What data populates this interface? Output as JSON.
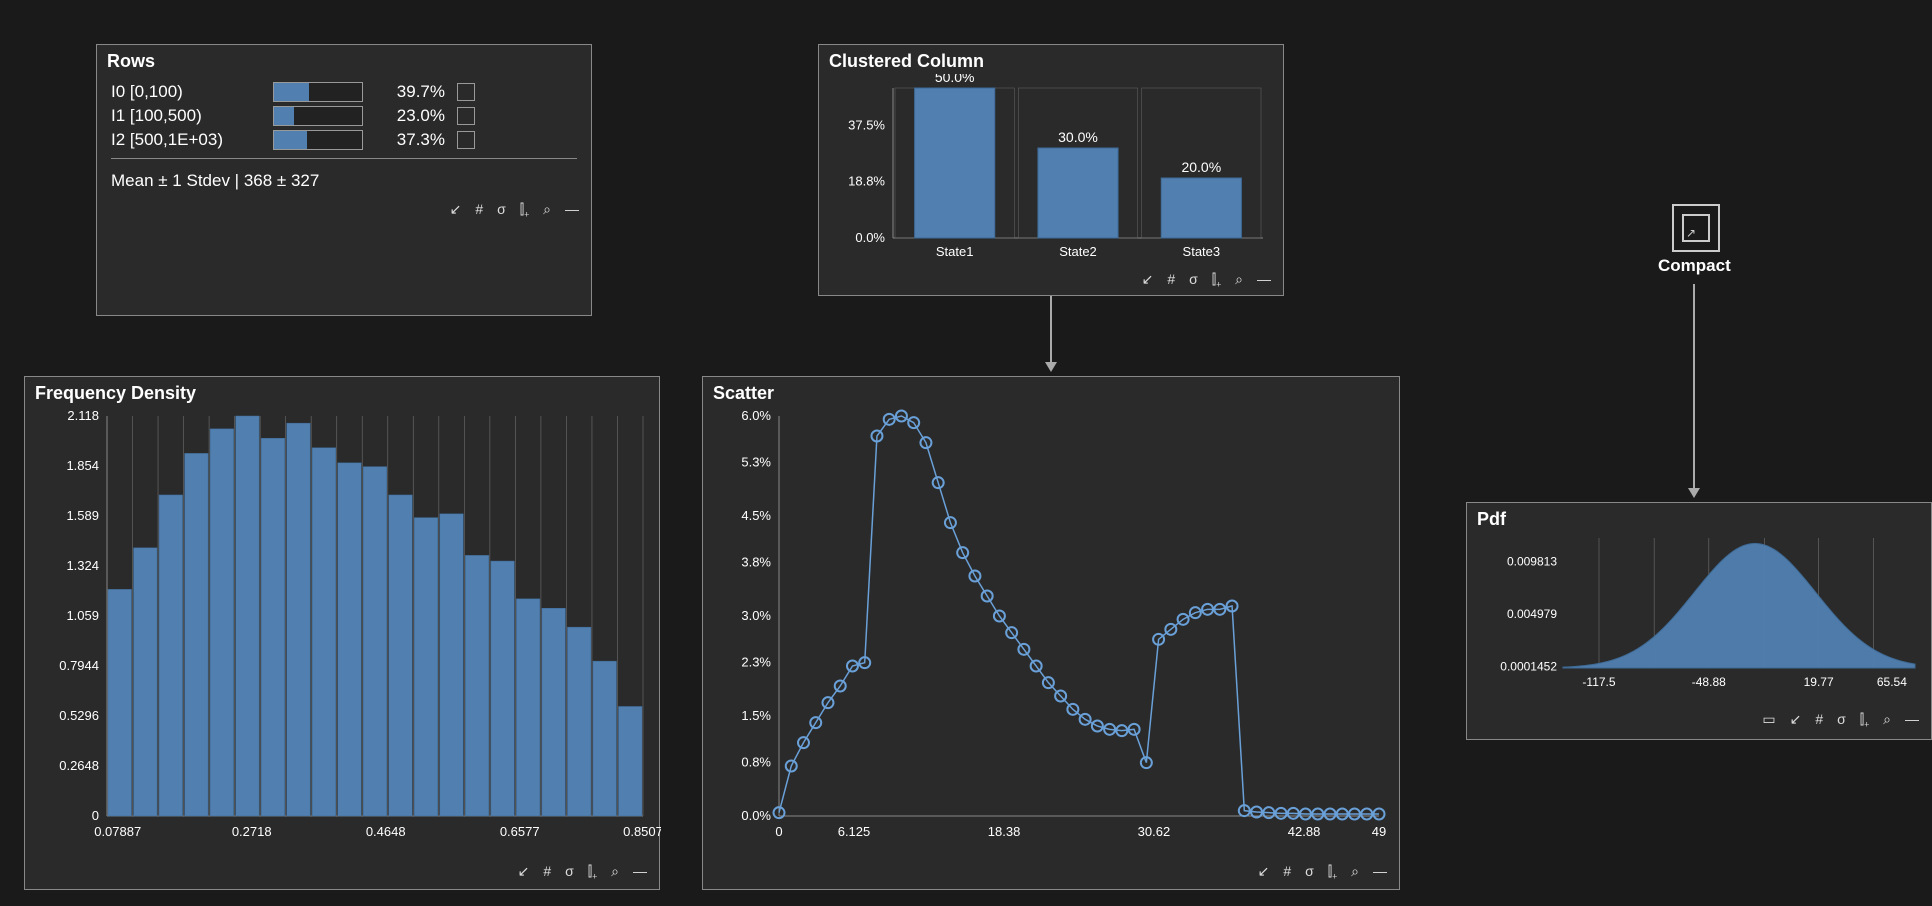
{
  "colors": {
    "bar": "#507fb0",
    "barBorder": "#3e6a95",
    "grid": "#777",
    "panelBg": "#2a2a2a",
    "plot": "#333",
    "text": "#ffffff",
    "marker": "#507fb0",
    "markerStroke": "#6aa0d8"
  },
  "rows": {
    "title": "Rows",
    "items": [
      {
        "label": "I0 [0,100)",
        "pct": "39.7%",
        "fill": 39.7
      },
      {
        "label": "I1 [100,500)",
        "pct": "23.0%",
        "fill": 23.0
      },
      {
        "label": "I2 [500,1E+03)",
        "pct": "37.3%",
        "fill": 37.3
      }
    ],
    "stat": "Mean ± 1 Stdev | 368 ± 327",
    "toolbar": [
      "↙",
      "#",
      "σ",
      "⫿₊",
      "⌕",
      "—"
    ]
  },
  "clustered": {
    "title": "Clustered Column",
    "ymax": 50,
    "yticks": [
      {
        "v": 0,
        "l": "0.0%"
      },
      {
        "v": 18.8,
        "l": "18.8%"
      },
      {
        "v": 37.5,
        "l": "37.5%"
      }
    ],
    "bars": [
      {
        "cat": "State1",
        "v": 50,
        "label": "50.0%"
      },
      {
        "cat": "State2",
        "v": 30,
        "label": "30.0%"
      },
      {
        "cat": "State3",
        "v": 20,
        "label": "20.0%"
      }
    ],
    "toolbar": [
      "↙",
      "#",
      "σ",
      "⫿₊",
      "⌕",
      "—"
    ]
  },
  "freq": {
    "title": "Frequency Density",
    "ymax": 2.118,
    "yticks": [
      0,
      0.2648,
      0.5296,
      0.7944,
      1.059,
      1.324,
      1.589,
      1.854,
      2.118
    ],
    "xticks": [
      {
        "p": 0.02,
        "l": "0.07887"
      },
      {
        "p": 0.27,
        "l": "0.2718"
      },
      {
        "p": 0.52,
        "l": "0.4648"
      },
      {
        "p": 0.77,
        "l": "0.6577"
      },
      {
        "p": 1.0,
        "l": "0.8507"
      }
    ],
    "bars": [
      1.2,
      1.42,
      1.7,
      1.92,
      2.05,
      2.118,
      2.0,
      2.08,
      1.95,
      1.87,
      1.85,
      1.7,
      1.58,
      1.6,
      1.38,
      1.35,
      1.15,
      1.1,
      1.0,
      0.82,
      0.58
    ],
    "toolbar": [
      "↙",
      "#",
      "σ",
      "⫿₊",
      "⌕",
      "—"
    ]
  },
  "scatter": {
    "title": "Scatter",
    "xmin": 0,
    "xmax": 49,
    "ymin": 0,
    "ymax": 6.0,
    "yticks": [
      {
        "v": 0,
        "l": "0.0%"
      },
      {
        "v": 0.8,
        "l": "0.8%"
      },
      {
        "v": 1.5,
        "l": "1.5%"
      },
      {
        "v": 2.3,
        "l": "2.3%"
      },
      {
        "v": 3.0,
        "l": "3.0%"
      },
      {
        "v": 3.8,
        "l": "3.8%"
      },
      {
        "v": 4.5,
        "l": "4.5%"
      },
      {
        "v": 5.3,
        "l": "5.3%"
      },
      {
        "v": 6.0,
        "l": "6.0%"
      }
    ],
    "xticks": [
      {
        "v": 0,
        "l": "0"
      },
      {
        "v": 6.125,
        "l": "6.125"
      },
      {
        "v": 18.38,
        "l": "18.38"
      },
      {
        "v": 30.62,
        "l": "30.62"
      },
      {
        "v": 42.88,
        "l": "42.88"
      },
      {
        "v": 49,
        "l": "49"
      }
    ],
    "points": [
      [
        0,
        0.05
      ],
      [
        1,
        0.75
      ],
      [
        2,
        1.1
      ],
      [
        3,
        1.4
      ],
      [
        4,
        1.7
      ],
      [
        5,
        1.95
      ],
      [
        6,
        2.25
      ],
      [
        7,
        2.3
      ],
      [
        8,
        5.7
      ],
      [
        9,
        5.95
      ],
      [
        10,
        6.0
      ],
      [
        11,
        5.9
      ],
      [
        12,
        5.6
      ],
      [
        13,
        5.0
      ],
      [
        14,
        4.4
      ],
      [
        15,
        3.95
      ],
      [
        16,
        3.6
      ],
      [
        17,
        3.3
      ],
      [
        18,
        3.0
      ],
      [
        19,
        2.75
      ],
      [
        20,
        2.5
      ],
      [
        21,
        2.25
      ],
      [
        22,
        2.0
      ],
      [
        23,
        1.8
      ],
      [
        24,
        1.6
      ],
      [
        25,
        1.45
      ],
      [
        26,
        1.35
      ],
      [
        27,
        1.3
      ],
      [
        28,
        1.28
      ],
      [
        29,
        1.3
      ],
      [
        30,
        0.8
      ],
      [
        31,
        2.65
      ],
      [
        32,
        2.8
      ],
      [
        33,
        2.95
      ],
      [
        34,
        3.05
      ],
      [
        35,
        3.1
      ],
      [
        36,
        3.1
      ],
      [
        37,
        3.15
      ],
      [
        38,
        0.08
      ],
      [
        39,
        0.06
      ],
      [
        40,
        0.05
      ],
      [
        41,
        0.04
      ],
      [
        42,
        0.04
      ],
      [
        43,
        0.03
      ],
      [
        44,
        0.03
      ],
      [
        45,
        0.03
      ],
      [
        46,
        0.03
      ],
      [
        47,
        0.03
      ],
      [
        48,
        0.03
      ],
      [
        49,
        0.03
      ]
    ],
    "toolbar": [
      "↙",
      "#",
      "σ",
      "⫿₊",
      "⌕",
      "—"
    ]
  },
  "compact": {
    "label": "Compact"
  },
  "pdf": {
    "title": "Pdf",
    "yticks": [
      {
        "v": 0.0001452,
        "l": "0.0001452"
      },
      {
        "v": 0.004979,
        "l": "0.004979"
      },
      {
        "v": 0.009813,
        "l": "0.009813"
      }
    ],
    "xticks": [
      {
        "v": -117.5,
        "l": "-117.5"
      },
      {
        "v": -48.88,
        "l": "-48.88"
      },
      {
        "v": 19.77,
        "l": "19.77"
      },
      {
        "v": 65.54,
        "l": "65.54"
      }
    ],
    "xmin": -140,
    "xmax": 80,
    "ymax": 0.012,
    "mean": -20,
    "sigma": 38,
    "gridx": [
      -117.5,
      -83,
      -48.88,
      -14,
      19.77,
      54
    ],
    "toolbar": [
      "▭",
      "↙",
      "#",
      "σ",
      "⫿₊",
      "⌕",
      "—"
    ]
  }
}
